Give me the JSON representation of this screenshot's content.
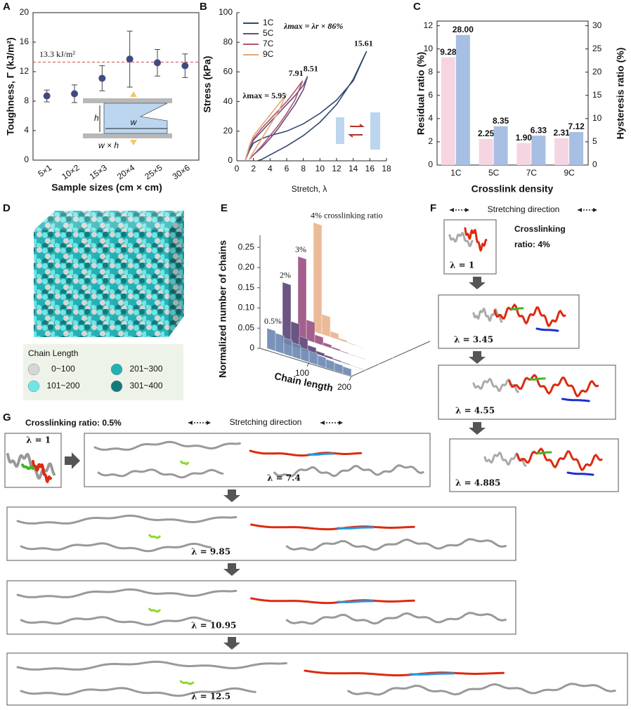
{
  "chart_data": [
    {
      "type": "errorbar",
      "panel": "A",
      "categories": [
        "5×1",
        "10×2",
        "15×3",
        "20×4",
        "25×5",
        "30×6"
      ],
      "values": [
        8.7,
        9.0,
        11.1,
        13.7,
        13.2,
        12.8
      ],
      "errors": [
        0.8,
        1.2,
        1.7,
        3.8,
        1.8,
        1.6
      ],
      "color": "#3f4a80",
      "ylim": [
        0,
        20
      ],
      "yticks": [
        0,
        4,
        8,
        12,
        16,
        20
      ],
      "y_label": "Toughness, Γ (kJ/m²)",
      "x_label": "Sample sizes (cm × cm)",
      "ref_line": 13.3,
      "ref_label": "13.3 kJ/m²",
      "ref_color": "#d04848",
      "inset_labels": [
        "h",
        "w",
        "w × h"
      ]
    },
    {
      "type": "line",
      "panel": "B",
      "x_label": "Stretch, λ",
      "y_label": "Stress (kPa)",
      "xlim": [
        0,
        18
      ],
      "xticks": [
        0,
        2,
        4,
        6,
        8,
        10,
        12,
        14,
        16,
        18
      ],
      "ylim": [
        0,
        100
      ],
      "yticks": [
        0,
        20,
        40,
        60,
        80,
        100
      ],
      "annotation": "λmax = λr × 86%",
      "series": [
        {
          "name": "1C",
          "color": "#2f4670",
          "peak_label": "15.61",
          "x": [
            1,
            1.5,
            2,
            3,
            4,
            6,
            8,
            10,
            12,
            14,
            15.61,
            14,
            12,
            10,
            8,
            6,
            4,
            3,
            2.5
          ],
          "values": [
            0,
            7,
            12,
            15,
            17,
            20,
            25,
            32,
            41,
            54,
            74,
            55,
            38,
            26,
            17,
            10,
            4,
            1,
            0
          ]
        },
        {
          "name": "5C",
          "color": "#6a4c7e",
          "peak_label": "8.51",
          "x": [
            1,
            1.5,
            2,
            3,
            4,
            5,
            6,
            7,
            8,
            8.51,
            8,
            7,
            6,
            5,
            4,
            3,
            2,
            1.5
          ],
          "values": [
            0,
            8,
            14,
            20,
            26,
            32,
            38,
            44,
            51,
            57,
            48,
            38,
            30,
            22,
            15,
            9,
            4,
            1
          ]
        },
        {
          "name": "7C",
          "color": "#b0556a",
          "peak_label": "7.91",
          "x": [
            1,
            1.5,
            2,
            3,
            4,
            5,
            6,
            7,
            7.91,
            7,
            6,
            5,
            4,
            3,
            2,
            1.5
          ],
          "values": [
            0,
            9,
            15,
            22,
            28,
            34,
            40,
            47,
            54,
            41,
            32,
            24,
            17,
            10,
            4,
            1
          ]
        },
        {
          "name": "9C",
          "color": "#e4a87a",
          "peak_label": "λmax = 5.95",
          "x": [
            1,
            1.5,
            2,
            3,
            4,
            5,
            5.95,
            5,
            4,
            3,
            2,
            1.5
          ],
          "values": [
            0,
            10,
            17,
            24,
            31,
            38,
            45,
            33,
            24,
            15,
            6,
            1
          ]
        }
      ]
    },
    {
      "type": "bar",
      "panel": "C",
      "categories": [
        "1C",
        "5C",
        "7C",
        "9C"
      ],
      "x_label": "Crosslink density",
      "ylim": [
        0,
        12.4
      ],
      "yticks": [
        0,
        2,
        4,
        6,
        8,
        10,
        12
      ],
      "y2lim": [
        0,
        31
      ],
      "y2ticks": [
        0,
        5,
        10,
        15,
        20,
        25,
        30
      ],
      "series": [
        {
          "name": "Residual ratio (%)",
          "color": "#f6d5e3",
          "label_color": "#b0386e",
          "values": [
            9.28,
            2.25,
            1.9,
            2.31
          ],
          "value_labels": [
            "9.28",
            "2.25",
            "1.90",
            "2.31"
          ]
        },
        {
          "name": "Hysteresis ratio (%)",
          "color": "#a8bfe4",
          "label_color": "#4a5a86",
          "axis": "y2",
          "values": [
            28,
            8.35,
            6.33,
            7.12
          ],
          "value_labels": [
            "28.00",
            "8.35",
            "6.33",
            "7.12"
          ]
        }
      ]
    },
    {
      "type": "histogram3d",
      "panel": "E",
      "x_label": "Chain length",
      "y_label": "Normalized number of chains",
      "x": [
        10,
        30,
        50,
        70,
        90,
        110,
        130,
        150,
        170,
        190
      ],
      "xlim": [
        0,
        200
      ],
      "xticks": [
        100,
        200
      ],
      "ylim": [
        0,
        0.28
      ],
      "yticks": [
        0,
        0.05,
        {
          "value": 0.1,
          "label": "0.10"
        },
        0.15,
        {
          "value": 0.2,
          "label": "0.20"
        },
        0.25
      ],
      "series": [
        {
          "name": "0.5%",
          "color": "#6a86b0",
          "values": [
            0.05,
            0.045,
            0.04,
            0.035,
            0.03,
            0.028,
            0.025,
            0.022,
            0.02,
            0.018
          ]
        },
        {
          "name": "2%",
          "color": "#5b4476",
          "values": [
            0.15,
            0.06,
            0.03,
            0.015,
            0.008,
            0.005,
            0.003,
            0.002,
            0.001,
            0.001
          ]
        },
        {
          "name": "3%",
          "color": "#9a4f80",
          "values": [
            0.2,
            0.05,
            0.02,
            0.008,
            0.004,
            0.002,
            0.001,
            0.001,
            0,
            0
          ]
        },
        {
          "name": "4% crosslinking ratio",
          "color": "#e9b48e",
          "values": [
            0.27,
            0.05,
            0.015,
            0.005,
            0.002,
            0.001,
            0,
            0,
            0,
            0
          ]
        }
      ]
    }
  ],
  "panel_d": {
    "panel": "D",
    "legend_title": "Chain Length",
    "legend": [
      {
        "label": "0~100",
        "color": "#d6d6d6"
      },
      {
        "label": "101~200",
        "color": "#6fe6e6"
      },
      {
        "label": "201~300",
        "color": "#22b0b4"
      },
      {
        "label": "301~400",
        "color": "#137a7c"
      }
    ]
  },
  "panel_f": {
    "panel": "F",
    "direction": "Stretching direction",
    "crosslinking_ratio": [
      "Crosslinking",
      "ratio: 4%"
    ],
    "frames": [
      "λ = 1",
      "λ = 3.45",
      "λ = 4.55",
      "λ = 4.885"
    ]
  },
  "panel_g": {
    "panel": "G",
    "crosslinking_ratio": "Crosslinking ratio: 0.5%",
    "direction": "Stretching direction",
    "frames": [
      "λ = 1",
      "λ = 7.4",
      "λ = 9.85",
      "λ = 10.95",
      "λ = 12.5"
    ]
  }
}
